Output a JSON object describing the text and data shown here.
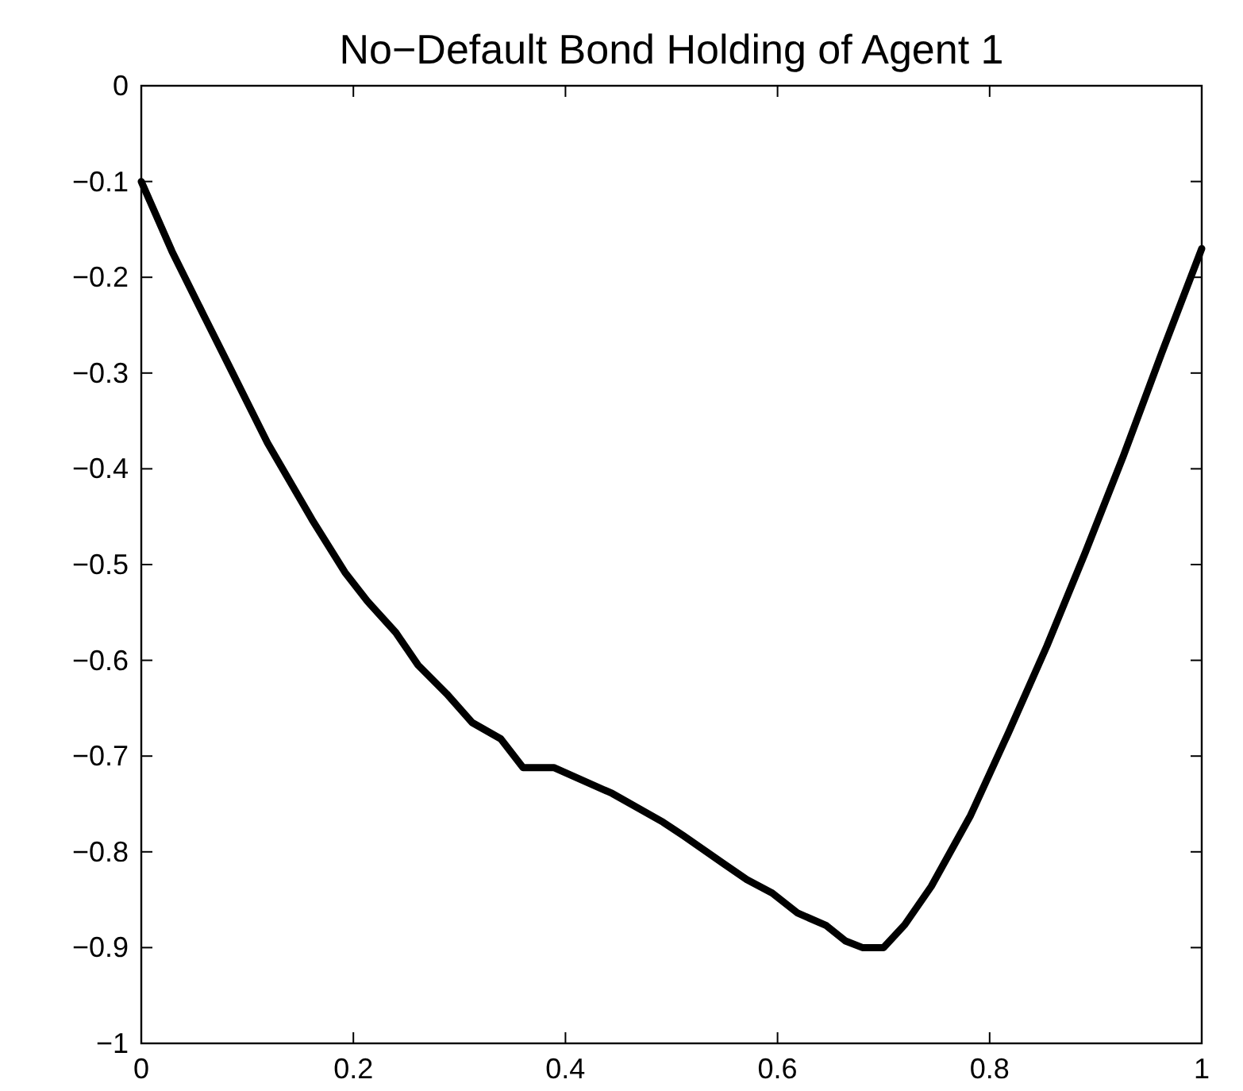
{
  "chart_data": {
    "type": "line",
    "title": "No−Default Bond Holding of Agent 1",
    "x": [
      0,
      0.029,
      0.059,
      0.083,
      0.119,
      0.161,
      0.192,
      0.213,
      0.24,
      0.261,
      0.288,
      0.312,
      0.339,
      0.36,
      0.389,
      0.444,
      0.492,
      0.511,
      0.55,
      0.571,
      0.595,
      0.619,
      0.646,
      0.664,
      0.68,
      0.7,
      0.72,
      0.745,
      0.782,
      0.818,
      0.854,
      0.89,
      0.926,
      0.962,
      1
    ],
    "series": [
      {
        "color": "#000000",
        "values": [
          -0.1,
          -0.173,
          -0.24,
          -0.293,
          -0.373,
          -0.453,
          -0.508,
          -0.538,
          -0.571,
          -0.605,
          -0.635,
          -0.665,
          -0.682,
          -0.712,
          -0.712,
          -0.739,
          -0.769,
          -0.783,
          -0.813,
          -0.829,
          -0.843,
          -0.864,
          -0.877,
          -0.893,
          -0.9,
          -0.9,
          -0.876,
          -0.836,
          -0.762,
          -0.675,
          -0.585,
          -0.488,
          -0.387,
          -0.28,
          -0.17
        ]
      }
    ],
    "xlim": [
      0,
      1
    ],
    "xticks": [
      0,
      0.2,
      0.4,
      0.6,
      0.8,
      1
    ],
    "ylim": [
      -1,
      0
    ],
    "yticks": [
      -1,
      -0.9,
      -0.8,
      -0.7,
      -0.6,
      -0.5,
      -0.4,
      -0.3,
      -0.2,
      -0.1,
      0
    ],
    "grid": false,
    "marker": "none",
    "line_style": "solid"
  }
}
